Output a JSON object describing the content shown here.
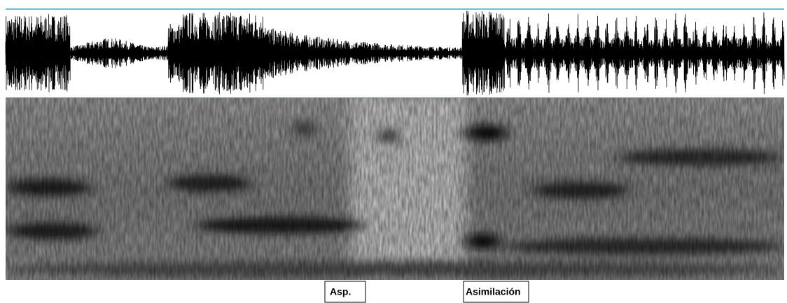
{
  "labels": {
    "aspiration": "Asp.",
    "assimilation": "Asimilación"
  }
}
